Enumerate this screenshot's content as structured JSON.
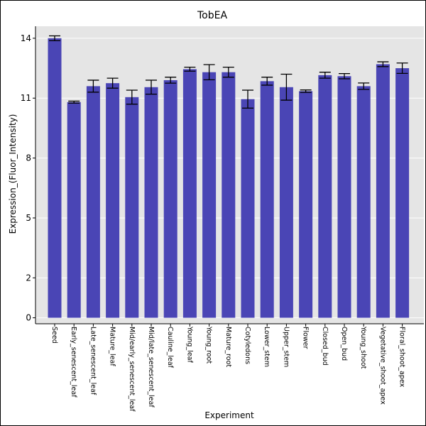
{
  "chart_data": {
    "type": "bar",
    "title": "TobEA",
    "xlabel": "Experiment",
    "ylabel": "Expression_(Fluor_Intensity)",
    "ylim": [
      -0.3,
      14.6
    ],
    "yticks": [
      0,
      2,
      5,
      8,
      11,
      14
    ],
    "ytick_labels": [
      "0",
      "2",
      "5",
      "8",
      "11",
      "14"
    ],
    "grid": true,
    "bar_color": "#4a45b5",
    "panel_background": "#e5e5e5",
    "categories": [
      "Seed",
      "Early_senescent_leaf",
      "Late_senescent_leaf",
      "Mature_leaf",
      "Mid/early_senescent_leaf",
      "Mid/late_senescent_leaf",
      "Cauline_leaf",
      "Young_leaf",
      "Young_root",
      "Mature_root",
      "Cotyledons",
      "Lower_stem",
      "Upper_stem",
      "Flower",
      "Closed_bud",
      "Open_bud",
      "Young_shoot",
      "Vegetative_shoot_apex",
      "Floral_shoot_apex"
    ],
    "values": [
      14.0,
      10.8,
      11.6,
      11.75,
      11.05,
      11.55,
      11.9,
      12.45,
      12.3,
      12.3,
      10.95,
      11.85,
      11.55,
      11.35,
      12.15,
      12.1,
      11.6,
      12.7,
      12.5
    ],
    "errors": [
      0.12,
      0.05,
      0.3,
      0.25,
      0.35,
      0.35,
      0.15,
      0.1,
      0.38,
      0.25,
      0.45,
      0.2,
      0.65,
      0.06,
      0.15,
      0.13,
      0.16,
      0.12,
      0.26
    ]
  }
}
